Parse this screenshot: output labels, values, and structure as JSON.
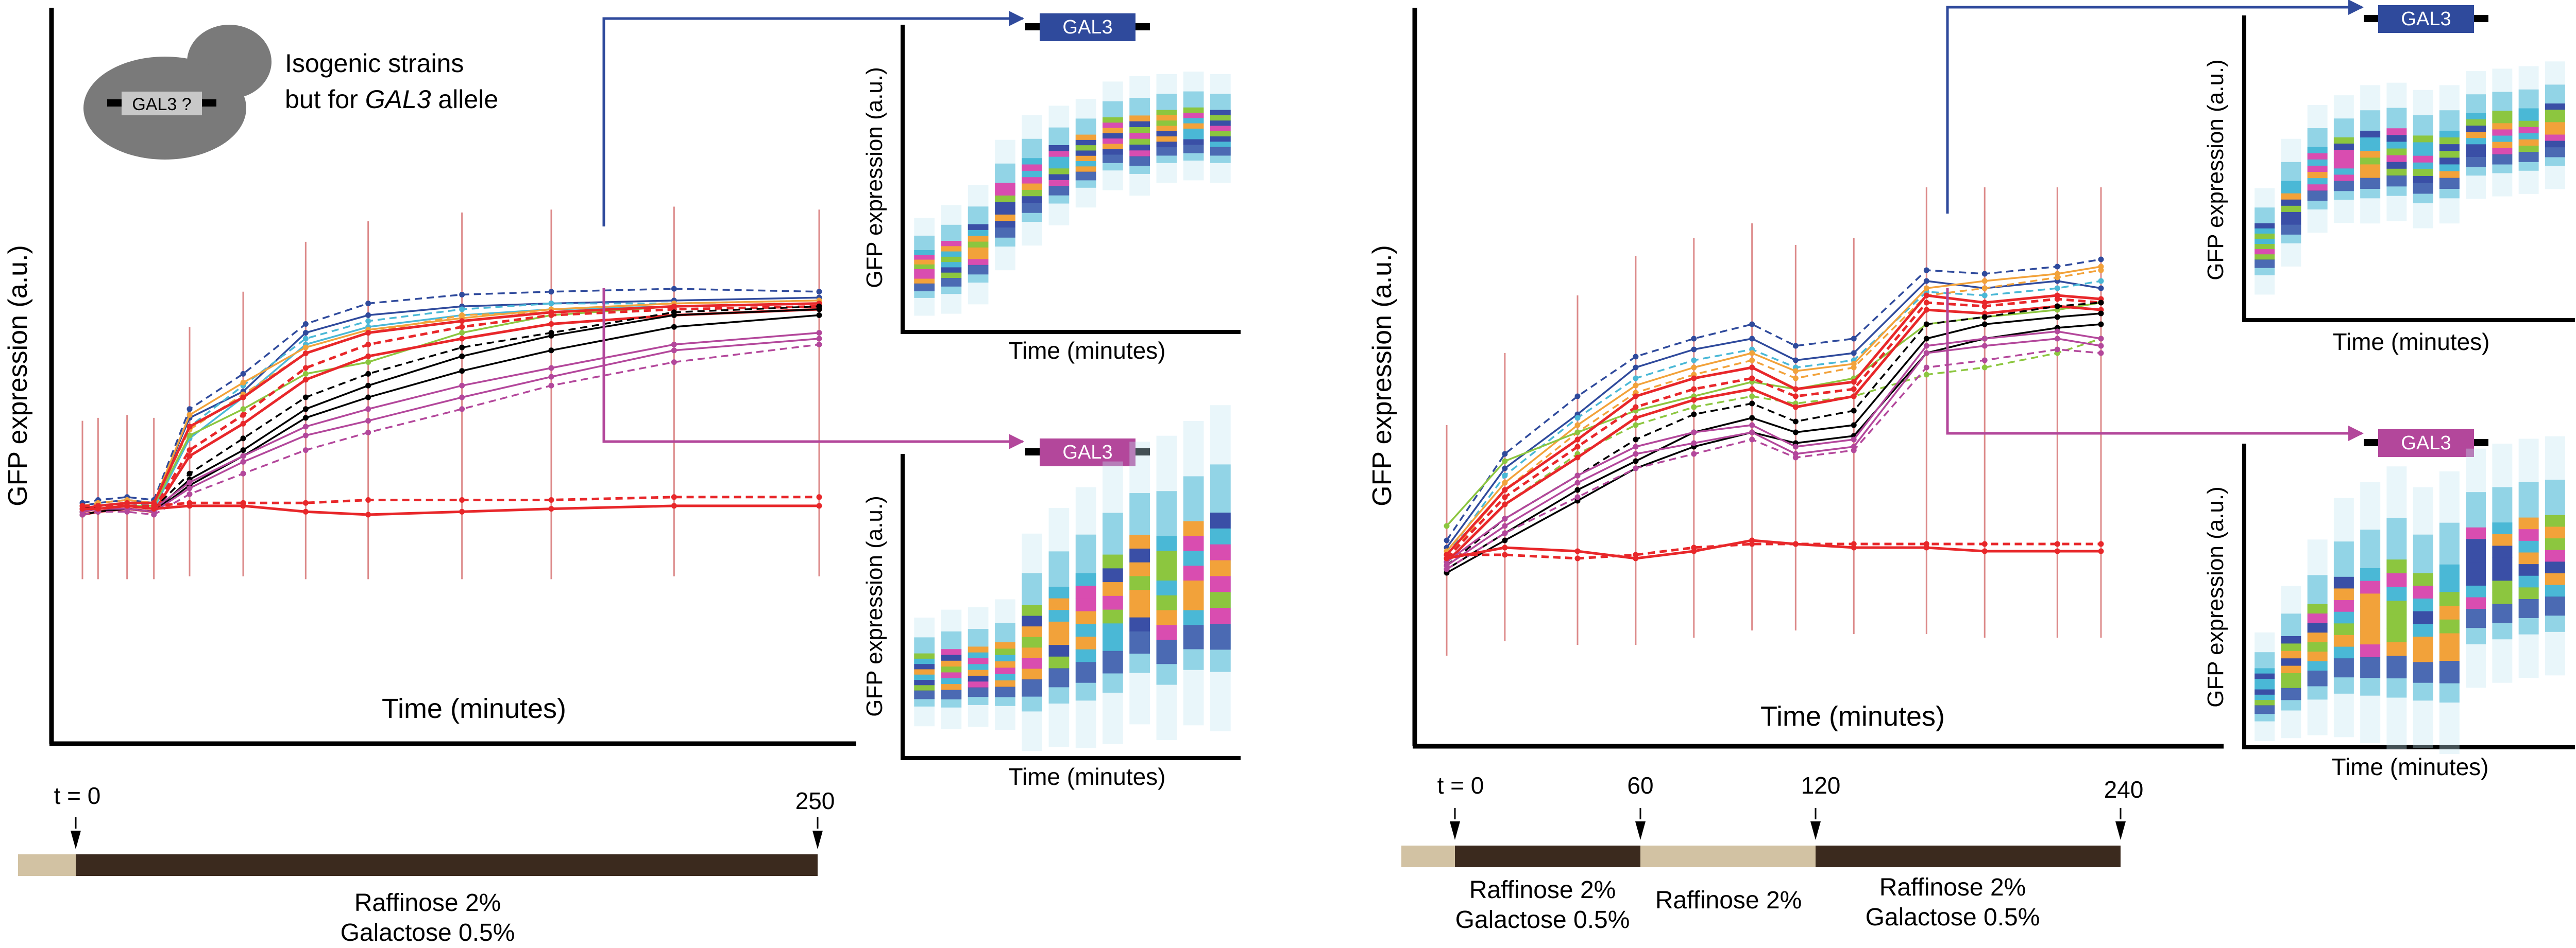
{
  "colors": {
    "gal3_blue": "#2f4a9c",
    "gal3_magenta": "#b3479b",
    "condition_light": "#d2c2a3",
    "condition_dark": "#3b2a1e",
    "cell_gray": "#7a7a7a",
    "gene_label_bg": "#c8c8c8",
    "density_cold": "#bfe6f2",
    "density_mid": "#4ab8d6",
    "density_deep": "#3a4fa6",
    "density_hot1": "#d94db0",
    "density_hot2": "#f2a23a",
    "density_hot3": "#8cc63f"
  },
  "labels": {
    "ylabel_main": "GFP expression (a.u.)",
    "xlabel_main": "Time (minutes)",
    "ylabel_inset": "GFP expression (a.u.)",
    "xlabel_inset": "Time (minutes)",
    "gene_tag": "GAL3",
    "cell_gene": "GAL3 ?",
    "strains_line1": "Isogenic strains",
    "strains_line2_prefix": "but for ",
    "strains_line2_gene": "GAL3",
    "strains_line2_suffix": " allele"
  },
  "left_timeline": {
    "ticks": [
      "t = 0",
      "250"
    ],
    "media_line1": "Raffinose 2%",
    "media_line2": "Galactose 0.5%"
  },
  "right_timeline": {
    "ticks": [
      "t = 0",
      "60",
      "120",
      "240"
    ],
    "seg1_line1": "Raffinose 2%",
    "seg1_line2": "Galactose 0.5%",
    "seg2_line1": "Raffinose 2%",
    "seg3_line1": "Raffinose 2%",
    "seg3_line2": "Galactose 0.5%"
  },
  "chart_data": [
    {
      "type": "line",
      "panel": "left-main",
      "title": "",
      "xlabel": "Time (minutes)",
      "ylabel": "GFP expression (a.u.)",
      "x": [
        0,
        7,
        20,
        32,
        48,
        72,
        100,
        128,
        170,
        210,
        265,
        330
      ],
      "ylim": [
        0,
        1
      ],
      "legend": "none",
      "series": [
        {
          "color": "#2f4a9c",
          "style": "solid",
          "values": [
            0.03,
            0.04,
            0.05,
            0.04,
            0.33,
            0.42,
            0.62,
            0.68,
            0.71,
            0.72,
            0.73,
            0.74
          ]
        },
        {
          "color": "#2f4a9c",
          "style": "dashed",
          "values": [
            0.04,
            0.05,
            0.06,
            0.05,
            0.36,
            0.48,
            0.65,
            0.72,
            0.75,
            0.76,
            0.77,
            0.76
          ]
        },
        {
          "color": "#4ab8d6",
          "style": "dashed",
          "values": [
            0.02,
            0.03,
            0.04,
            0.03,
            0.3,
            0.44,
            0.6,
            0.66,
            0.7,
            0.72,
            0.72,
            0.73
          ]
        },
        {
          "color": "#4ab8d6",
          "style": "solid",
          "values": [
            0.01,
            0.02,
            0.03,
            0.02,
            0.26,
            0.4,
            0.58,
            0.64,
            0.68,
            0.7,
            0.71,
            0.72
          ]
        },
        {
          "color": "#f2a23a",
          "style": "solid",
          "values": [
            0.02,
            0.03,
            0.04,
            0.04,
            0.34,
            0.45,
            0.57,
            0.63,
            0.67,
            0.7,
            0.72,
            0.73
          ]
        },
        {
          "color": "#f2a23a",
          "style": "dashed",
          "values": [
            0.03,
            0.04,
            0.05,
            0.04,
            0.29,
            0.41,
            0.55,
            0.62,
            0.68,
            0.69,
            0.71,
            0.72
          ]
        },
        {
          "color": "#8cc63f",
          "style": "solid",
          "values": [
            0.01,
            0.02,
            0.03,
            0.03,
            0.27,
            0.36,
            0.48,
            0.52,
            0.62,
            0.68,
            0.71,
            0.72
          ]
        },
        {
          "color": "#e8272a",
          "style": "solid",
          "values": [
            0.02,
            0.03,
            0.04,
            0.04,
            0.3,
            0.4,
            0.55,
            0.62,
            0.66,
            0.69,
            0.71,
            0.72
          ]
        },
        {
          "color": "#e8272a",
          "style": "dashed",
          "values": [
            0.01,
            0.02,
            0.03,
            0.02,
            0.22,
            0.34,
            0.5,
            0.58,
            0.64,
            0.68,
            0.7,
            0.71
          ]
        },
        {
          "color": "#e8272a",
          "style": "solid",
          "values": [
            0.0,
            0.01,
            0.02,
            0.01,
            0.2,
            0.31,
            0.46,
            0.54,
            0.6,
            0.65,
            0.68,
            0.7
          ]
        },
        {
          "color": "#000000",
          "style": "solid",
          "values": [
            0.01,
            0.02,
            0.02,
            0.01,
            0.12,
            0.22,
            0.36,
            0.44,
            0.54,
            0.61,
            0.68,
            0.7
          ]
        },
        {
          "color": "#000000",
          "style": "dashed",
          "values": [
            0.02,
            0.03,
            0.03,
            0.02,
            0.14,
            0.26,
            0.4,
            0.48,
            0.57,
            0.62,
            0.69,
            0.71
          ]
        },
        {
          "color": "#000000",
          "style": "solid",
          "values": [
            0.0,
            0.01,
            0.02,
            0.01,
            0.1,
            0.2,
            0.33,
            0.4,
            0.49,
            0.56,
            0.64,
            0.68
          ]
        },
        {
          "color": "#b3479b",
          "style": "solid",
          "values": [
            0.01,
            0.02,
            0.02,
            0.01,
            0.09,
            0.18,
            0.27,
            0.32,
            0.4,
            0.47,
            0.56,
            0.6
          ]
        },
        {
          "color": "#b3479b",
          "style": "dashed",
          "values": [
            0.0,
            0.01,
            0.01,
            0.0,
            0.07,
            0.14,
            0.22,
            0.28,
            0.36,
            0.44,
            0.52,
            0.58
          ]
        },
        {
          "color": "#b3479b",
          "style": "solid",
          "values": [
            0.02,
            0.02,
            0.03,
            0.02,
            0.11,
            0.2,
            0.3,
            0.36,
            0.44,
            0.5,
            0.58,
            0.62
          ]
        },
        {
          "color": "#e8272a",
          "style": "solid",
          "values": [
            0.02,
            0.02,
            0.03,
            0.02,
            0.03,
            0.03,
            0.01,
            0.0,
            0.01,
            0.02,
            0.03,
            0.03
          ]
        },
        {
          "color": "#e8272a",
          "style": "dashed",
          "values": [
            0.03,
            0.03,
            0.03,
            0.03,
            0.04,
            0.04,
            0.04,
            0.05,
            0.05,
            0.05,
            0.06,
            0.06
          ]
        }
      ]
    },
    {
      "type": "line",
      "panel": "right-main",
      "title": "",
      "xlabel": "Time (minutes)",
      "ylabel": "GFP expression (a.u.)",
      "x": [
        0,
        20,
        45,
        65,
        85,
        105,
        120,
        140,
        165,
        185,
        210,
        225
      ],
      "ylim": [
        0,
        1
      ],
      "legend": "none",
      "series": [
        {
          "color": "#2f4a9c",
          "style": "solid",
          "values": [
            0.08,
            0.3,
            0.45,
            0.58,
            0.63,
            0.66,
            0.6,
            0.62,
            0.82,
            0.8,
            0.82,
            0.8
          ]
        },
        {
          "color": "#2f4a9c",
          "style": "dashed",
          "values": [
            0.1,
            0.34,
            0.5,
            0.61,
            0.66,
            0.7,
            0.64,
            0.66,
            0.85,
            0.84,
            0.86,
            0.88
          ]
        },
        {
          "color": "#4ab8d6",
          "style": "dashed",
          "values": [
            0.06,
            0.28,
            0.44,
            0.55,
            0.6,
            0.63,
            0.58,
            0.6,
            0.79,
            0.78,
            0.8,
            0.82
          ]
        },
        {
          "color": "#f2a23a",
          "style": "solid",
          "values": [
            0.07,
            0.26,
            0.42,
            0.53,
            0.58,
            0.62,
            0.57,
            0.59,
            0.8,
            0.82,
            0.84,
            0.86
          ]
        },
        {
          "color": "#f2a23a",
          "style": "dashed",
          "values": [
            0.05,
            0.24,
            0.4,
            0.51,
            0.56,
            0.6,
            0.55,
            0.58,
            0.78,
            0.8,
            0.83,
            0.85
          ]
        },
        {
          "color": "#8cc63f",
          "style": "solid",
          "values": [
            0.14,
            0.32,
            0.4,
            0.46,
            0.5,
            0.54,
            0.52,
            0.55,
            0.7,
            0.72,
            0.74,
            0.76
          ]
        },
        {
          "color": "#8cc63f",
          "style": "dashed",
          "values": [
            0.04,
            0.2,
            0.34,
            0.42,
            0.47,
            0.5,
            0.48,
            0.5,
            0.56,
            0.58,
            0.62,
            0.66
          ]
        },
        {
          "color": "#e8272a",
          "style": "solid",
          "values": [
            0.06,
            0.24,
            0.38,
            0.5,
            0.55,
            0.58,
            0.52,
            0.54,
            0.78,
            0.76,
            0.78,
            0.77
          ]
        },
        {
          "color": "#e8272a",
          "style": "dashed",
          "values": [
            0.05,
            0.22,
            0.36,
            0.47,
            0.52,
            0.55,
            0.5,
            0.52,
            0.76,
            0.75,
            0.77,
            0.76
          ]
        },
        {
          "color": "#e8272a",
          "style": "solid",
          "values": [
            0.04,
            0.2,
            0.33,
            0.44,
            0.49,
            0.52,
            0.47,
            0.5,
            0.74,
            0.73,
            0.75,
            0.74
          ]
        },
        {
          "color": "#000000",
          "style": "solid",
          "values": [
            0.02,
            0.12,
            0.24,
            0.32,
            0.4,
            0.44,
            0.4,
            0.42,
            0.66,
            0.7,
            0.72,
            0.73
          ]
        },
        {
          "color": "#000000",
          "style": "dashed",
          "values": [
            0.03,
            0.16,
            0.28,
            0.38,
            0.45,
            0.48,
            0.43,
            0.46,
            0.7,
            0.72,
            0.75,
            0.76
          ]
        },
        {
          "color": "#000000",
          "style": "solid",
          "values": [
            0.01,
            0.1,
            0.21,
            0.3,
            0.36,
            0.4,
            0.37,
            0.39,
            0.62,
            0.66,
            0.69,
            0.7
          ]
        },
        {
          "color": "#b3479b",
          "style": "solid",
          "values": [
            0.03,
            0.14,
            0.26,
            0.34,
            0.37,
            0.4,
            0.34,
            0.36,
            0.62,
            0.64,
            0.66,
            0.64
          ]
        },
        {
          "color": "#b3479b",
          "style": "dashed",
          "values": [
            0.02,
            0.12,
            0.22,
            0.3,
            0.34,
            0.38,
            0.33,
            0.35,
            0.58,
            0.6,
            0.63,
            0.62
          ]
        },
        {
          "color": "#b3479b",
          "style": "solid",
          "values": [
            0.04,
            0.16,
            0.28,
            0.36,
            0.4,
            0.42,
            0.36,
            0.38,
            0.64,
            0.66,
            0.68,
            0.66
          ]
        },
        {
          "color": "#e8272a",
          "style": "solid",
          "values": [
            0.05,
            0.08,
            0.07,
            0.05,
            0.07,
            0.1,
            0.09,
            0.08,
            0.08,
            0.07,
            0.07,
            0.07
          ]
        },
        {
          "color": "#e8272a",
          "style": "dashed",
          "values": [
            0.06,
            0.06,
            0.05,
            0.06,
            0.08,
            0.09,
            0.09,
            0.09,
            0.09,
            0.09,
            0.09,
            0.09
          ]
        }
      ]
    },
    {
      "type": "heatmap",
      "panel": "left-inset-blue",
      "allele_color": "#2f4a9c",
      "xlabel": "Time (minutes)",
      "ylabel": "GFP expression (a.u.)",
      "columns": 12,
      "modes": [
        0.17,
        0.2,
        0.26,
        0.42,
        0.52,
        0.58,
        0.63,
        0.7,
        0.7,
        0.73,
        0.74,
        0.73
      ],
      "spreads": [
        0.09,
        0.1,
        0.11,
        0.12,
        0.12,
        0.11,
        0.1,
        0.1,
        0.11,
        0.1,
        0.1,
        0.1
      ]
    },
    {
      "type": "heatmap",
      "panel": "left-inset-magenta",
      "allele_color": "#b3479b",
      "xlabel": "Time (minutes)",
      "ylabel": "GFP expression (a.u.)",
      "columns": 12,
      "modes": [
        0.28,
        0.29,
        0.3,
        0.31,
        0.4,
        0.46,
        0.5,
        0.56,
        0.64,
        0.62,
        0.68,
        0.7
      ],
      "spreads": [
        0.1,
        0.11,
        0.11,
        0.12,
        0.2,
        0.22,
        0.24,
        0.26,
        0.26,
        0.28,
        0.28,
        0.3
      ]
    },
    {
      "type": "heatmap",
      "panel": "right-inset-blue",
      "allele_color": "#2f4a9c",
      "xlabel": "Time (minutes)",
      "ylabel": "GFP expression (a.u.)",
      "columns": 12,
      "modes": [
        0.3,
        0.46,
        0.6,
        0.64,
        0.66,
        0.67,
        0.64,
        0.66,
        0.74,
        0.75,
        0.76,
        0.78
      ],
      "spreads": [
        0.1,
        0.12,
        0.12,
        0.12,
        0.13,
        0.13,
        0.13,
        0.13,
        0.12,
        0.12,
        0.12,
        0.12
      ]
    },
    {
      "type": "heatmap",
      "panel": "right-inset-magenta",
      "allele_color": "#b3479b",
      "xlabel": "Time (minutes)",
      "ylabel": "GFP expression (a.u.)",
      "columns": 12,
      "modes": [
        0.22,
        0.32,
        0.42,
        0.5,
        0.52,
        0.54,
        0.5,
        0.52,
        0.7,
        0.72,
        0.74,
        0.75
      ],
      "spreads": [
        0.1,
        0.14,
        0.18,
        0.22,
        0.24,
        0.26,
        0.24,
        0.26,
        0.22,
        0.22,
        0.22,
        0.22
      ]
    }
  ]
}
